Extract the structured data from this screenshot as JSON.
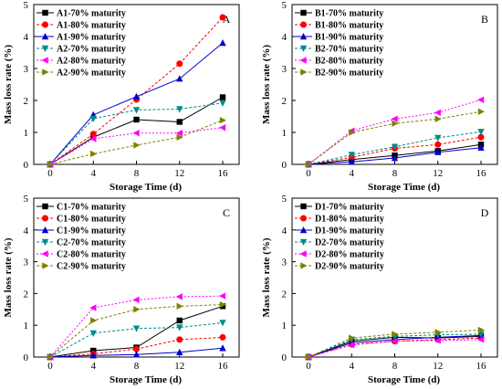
{
  "colors": {
    "A1": "#000000",
    "A2": "#008b8b",
    "s1": "#000000",
    "s2": "#ff0000",
    "s3": "#0000cc",
    "s4": "#008b8b",
    "s5": "#ff00ff",
    "s6": "#808000"
  },
  "chart_data": [
    {
      "type": "line",
      "panel_letter": "A",
      "xlabel": "Storage Time (d)",
      "ylabel": "Mass loss rate (%)",
      "x": [
        0,
        4,
        8,
        12,
        16
      ],
      "xticks": [
        "0",
        "4",
        "8",
        "12",
        "16"
      ],
      "ylim": [
        0,
        5
      ],
      "yticks": [
        "0",
        "1",
        "2",
        "3",
        "4",
        "5"
      ],
      "legend_position": "top-left",
      "series": [
        {
          "name": "A1-70% maturity",
          "marker": "square",
          "values": [
            0,
            0.85,
            1.4,
            1.33,
            2.1
          ]
        },
        {
          "name": "A1-80% maturity",
          "marker": "circle",
          "values": [
            0,
            0.95,
            2.03,
            3.15,
            4.6
          ]
        },
        {
          "name": "A1-90% maturity",
          "marker": "triangle-up",
          "values": [
            0,
            1.55,
            2.12,
            2.68,
            3.8
          ]
        },
        {
          "name": "A2-70% maturity",
          "marker": "triangle-down",
          "values": [
            0,
            1.43,
            1.7,
            1.73,
            1.92
          ]
        },
        {
          "name": "A2-80% maturity",
          "marker": "triangle-left",
          "values": [
            0,
            0.8,
            0.98,
            0.98,
            1.15
          ]
        },
        {
          "name": "A2-90% maturity",
          "marker": "triangle-right",
          "values": [
            0,
            0.33,
            0.6,
            0.85,
            1.38
          ]
        }
      ]
    },
    {
      "type": "line",
      "panel_letter": "B",
      "xlabel": "Storage Time (d)",
      "ylabel": "Mass loss rate (%)",
      "x": [
        0,
        4,
        8,
        12,
        16
      ],
      "xticks": [
        "0",
        "4",
        "8",
        "12",
        "16"
      ],
      "ylim": [
        0,
        5
      ],
      "yticks": [
        "0",
        "1",
        "2",
        "3",
        "4",
        "5"
      ],
      "legend_position": "top-left",
      "series": [
        {
          "name": "B1-70% maturity",
          "marker": "square",
          "values": [
            0,
            0.15,
            0.28,
            0.42,
            0.62
          ]
        },
        {
          "name": "B1-80% maturity",
          "marker": "circle",
          "values": [
            0,
            0.22,
            0.5,
            0.62,
            0.85
          ]
        },
        {
          "name": "B1-90% maturity",
          "marker": "triangle-up",
          "values": [
            0,
            0.08,
            0.2,
            0.38,
            0.52
          ]
        },
        {
          "name": "B2-70% maturity",
          "marker": "triangle-down",
          "values": [
            0,
            0.3,
            0.55,
            0.83,
            1.02
          ]
        },
        {
          "name": "B2-80% maturity",
          "marker": "triangle-left",
          "values": [
            0,
            1.05,
            1.42,
            1.62,
            2.02
          ]
        },
        {
          "name": "B2-90% maturity",
          "marker": "triangle-right",
          "values": [
            0,
            1.0,
            1.28,
            1.42,
            1.65
          ]
        }
      ]
    },
    {
      "type": "line",
      "panel_letter": "C",
      "xlabel": "Storage Time (d)",
      "ylabel": "Mass loss rate (%)",
      "x": [
        0,
        4,
        8,
        12,
        16
      ],
      "xticks": [
        "0",
        "4",
        "8",
        "12",
        "16"
      ],
      "ylim": [
        0,
        5
      ],
      "yticks": [
        "0",
        "1",
        "2",
        "3",
        "4",
        "5"
      ],
      "legend_position": "top-left",
      "series": [
        {
          "name": "C1-70% maturity",
          "marker": "square",
          "values": [
            0,
            0.2,
            0.3,
            1.15,
            1.6
          ]
        },
        {
          "name": "C1-80% maturity",
          "marker": "circle",
          "values": [
            0,
            0.1,
            0.25,
            0.55,
            0.62
          ]
        },
        {
          "name": "C1-90% maturity",
          "marker": "triangle-up",
          "values": [
            0,
            0.05,
            0.08,
            0.15,
            0.28
          ]
        },
        {
          "name": "C2-70% maturity",
          "marker": "triangle-down",
          "values": [
            0,
            0.75,
            0.9,
            0.93,
            1.08
          ]
        },
        {
          "name": "C2-80% maturity",
          "marker": "triangle-left",
          "values": [
            0,
            1.55,
            1.8,
            1.9,
            1.92
          ]
        },
        {
          "name": "C2-90% maturity",
          "marker": "triangle-right",
          "values": [
            0,
            1.15,
            1.5,
            1.6,
            1.65
          ]
        }
      ]
    },
    {
      "type": "line",
      "panel_letter": "D",
      "xlabel": "Storage Time (d)",
      "ylabel": "Mass loss rate (%)",
      "x": [
        0,
        4,
        8,
        12,
        16
      ],
      "xticks": [
        "0",
        "4",
        "8",
        "12",
        "16"
      ],
      "ylim": [
        0,
        5
      ],
      "yticks": [
        "0",
        "1",
        "2",
        "3",
        "4",
        "5"
      ],
      "legend_position": "top-left",
      "series": [
        {
          "name": "D1-70% maturity",
          "marker": "square",
          "values": [
            0,
            0.5,
            0.62,
            0.6,
            0.65
          ]
        },
        {
          "name": "D1-80% maturity",
          "marker": "circle",
          "values": [
            0,
            0.4,
            0.5,
            0.55,
            0.6
          ]
        },
        {
          "name": "D1-90% maturity",
          "marker": "triangle-up",
          "values": [
            0,
            0.45,
            0.55,
            0.62,
            0.68
          ]
        },
        {
          "name": "D2-70% maturity",
          "marker": "triangle-down",
          "values": [
            0,
            0.55,
            0.65,
            0.7,
            0.72
          ]
        },
        {
          "name": "D2-80% maturity",
          "marker": "triangle-left",
          "values": [
            0,
            0.38,
            0.5,
            0.52,
            0.55
          ]
        },
        {
          "name": "D2-90% maturity",
          "marker": "triangle-right",
          "values": [
            0,
            0.6,
            0.72,
            0.78,
            0.85
          ]
        }
      ]
    }
  ]
}
